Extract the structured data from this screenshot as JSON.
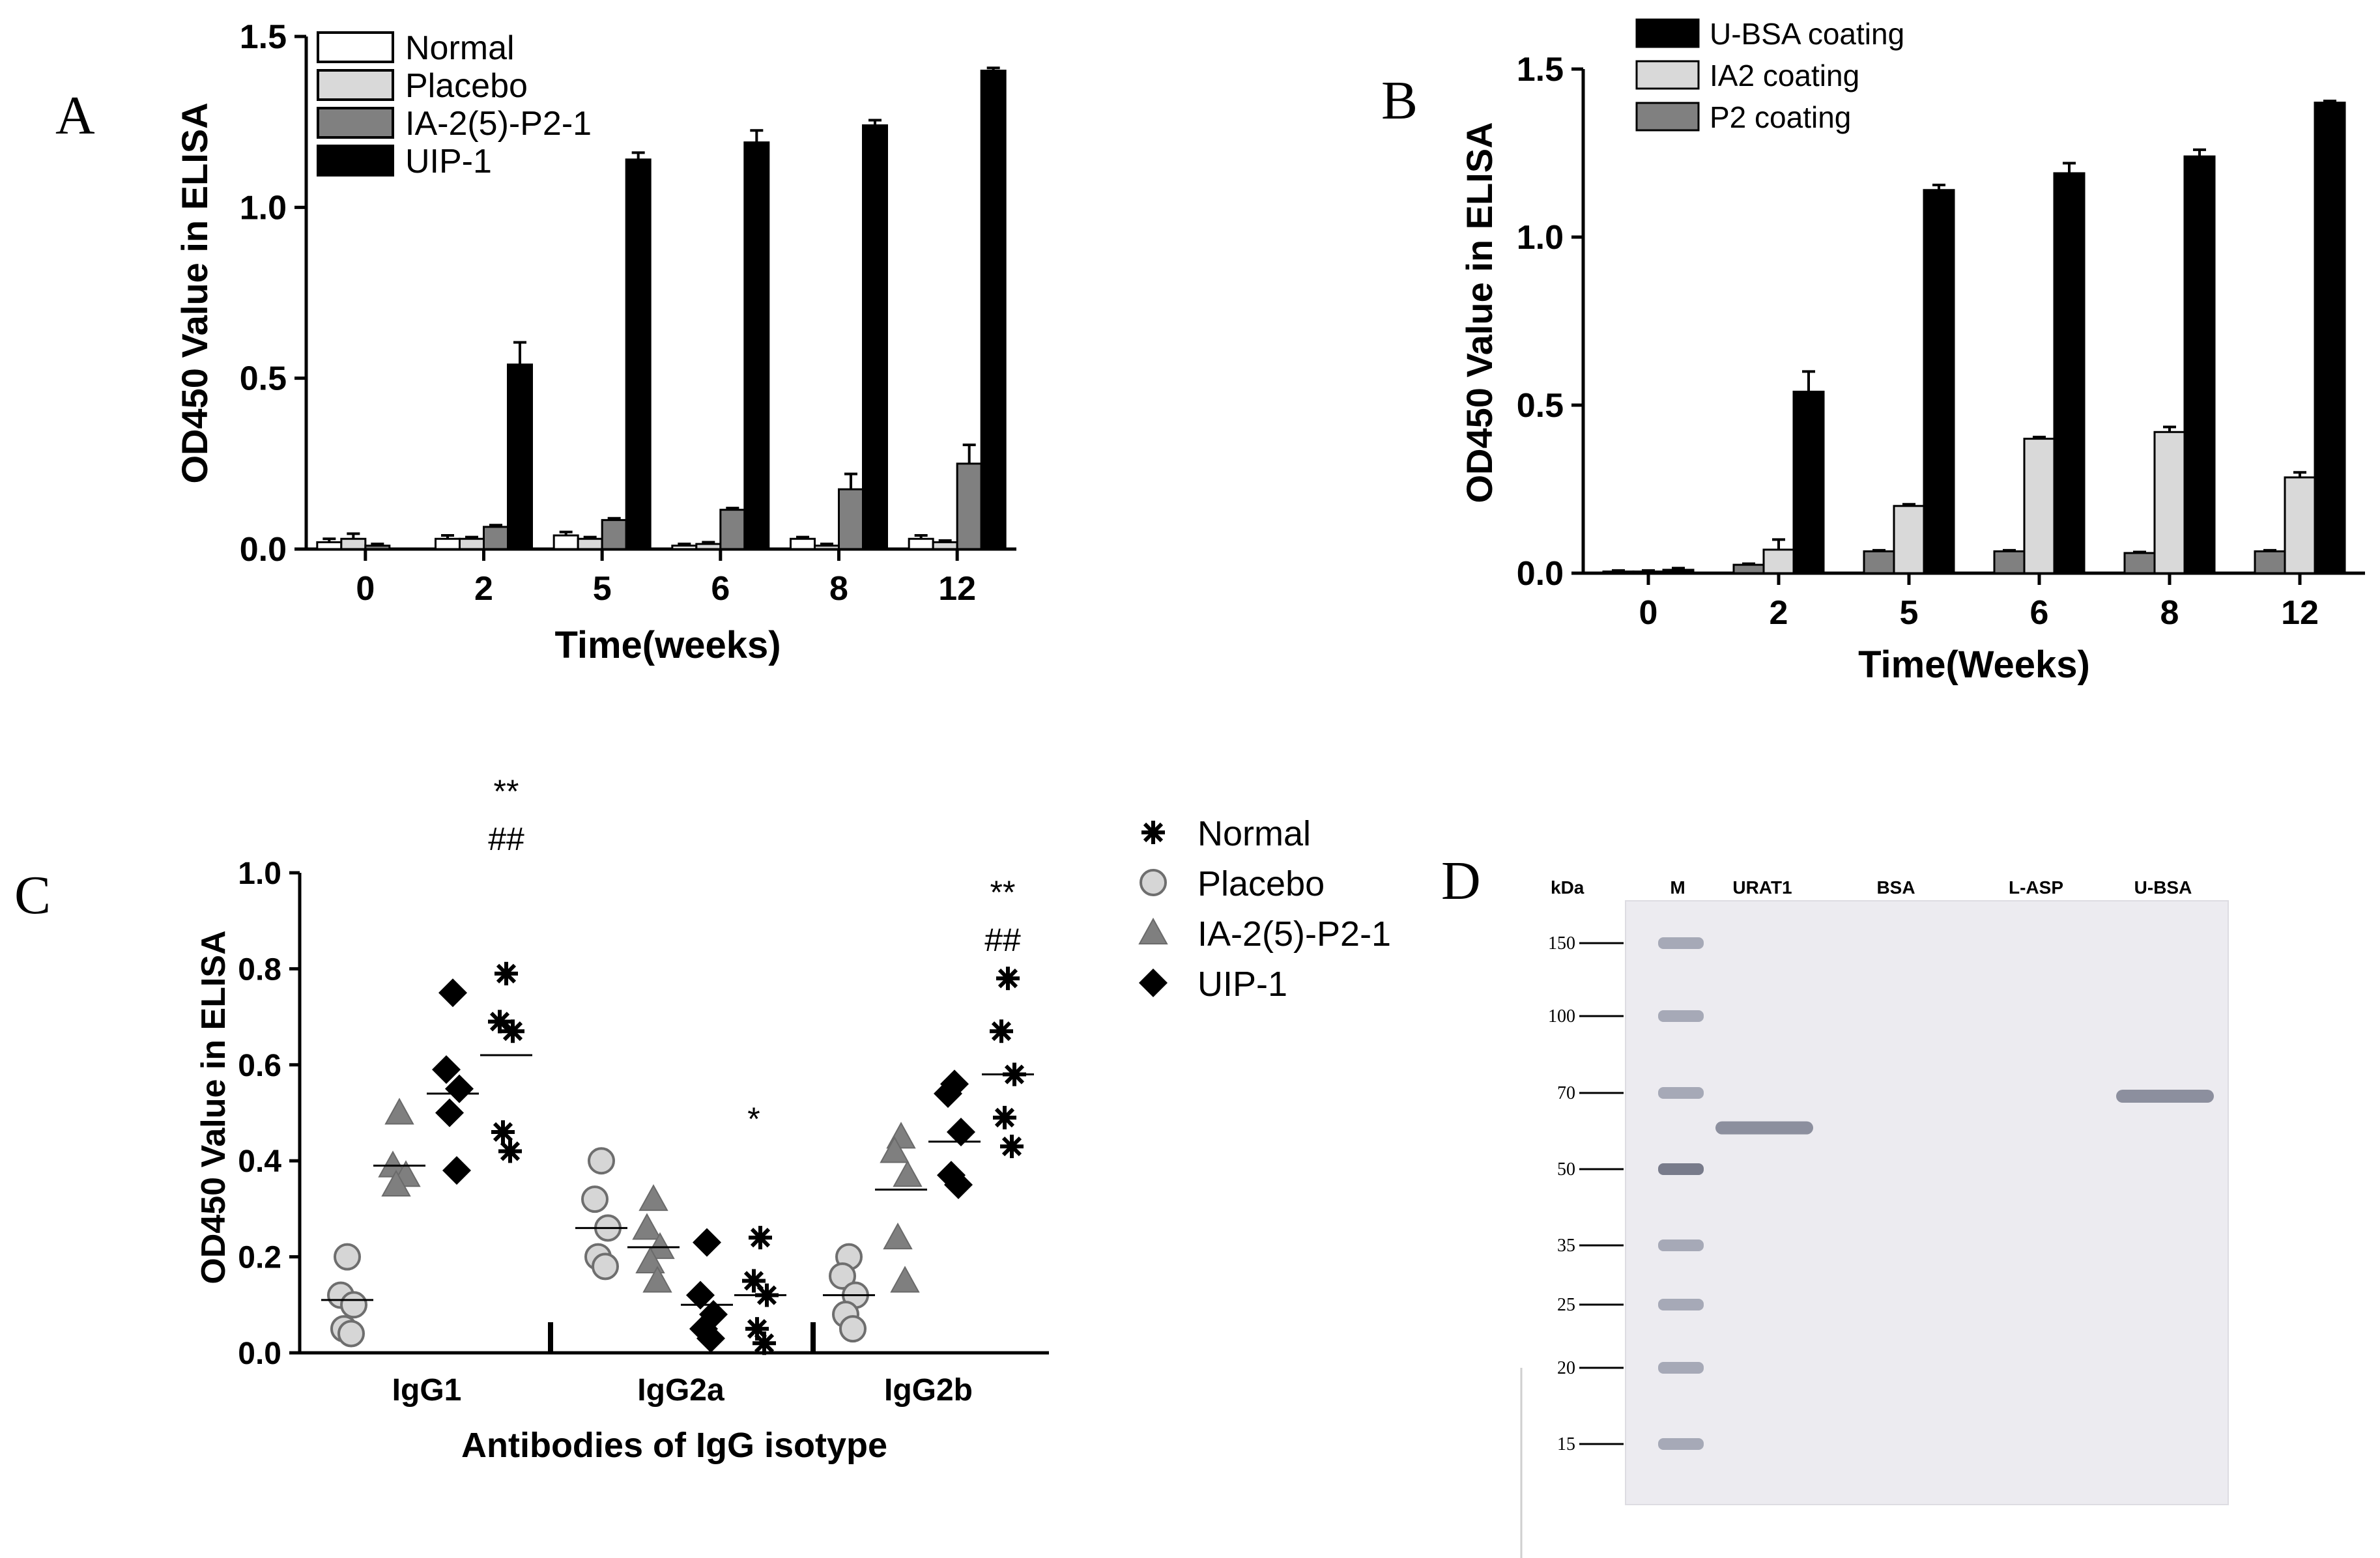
{
  "chart_data": [
    {
      "panel": "A",
      "type": "bar",
      "xlabel": "Time(weeks)",
      "ylabel": "OD450 Value in ELISA",
      "ylim": [
        0,
        1.5
      ],
      "yticks": [
        "0.0",
        "0.5",
        "1.0",
        "1.5"
      ],
      "categories": [
        "0",
        "2",
        "5",
        "6",
        "8",
        "12"
      ],
      "legend_position": "top-left",
      "series": [
        {
          "name": "Normal",
          "color": "#ffffff",
          "values": [
            0.02,
            0.03,
            0.04,
            0.01,
            0.03,
            0.03
          ],
          "errors": [
            0.01,
            0.01,
            0.01,
            0.005,
            0.005,
            0.01
          ]
        },
        {
          "name": "Placebo",
          "color": "#d9d9d9",
          "values": [
            0.03,
            0.03,
            0.03,
            0.015,
            0.01,
            0.02
          ],
          "errors": [
            0.015,
            0.005,
            0.005,
            0.005,
            0.005,
            0.005
          ]
        },
        {
          "name": "IA-2(5)-P2-1",
          "color": "#808080",
          "values": [
            0.01,
            0.065,
            0.085,
            0.115,
            0.175,
            0.25
          ],
          "errors": [
            0.005,
            0.005,
            0.005,
            0.005,
            0.045,
            0.055
          ]
        },
        {
          "name": "UIP-1",
          "color": "#000000",
          "values": [
            0.0,
            0.54,
            1.14,
            1.19,
            1.24,
            1.4
          ],
          "errors": [
            0.0,
            0.065,
            0.02,
            0.035,
            0.015,
            0.008
          ]
        }
      ]
    },
    {
      "panel": "B",
      "type": "bar",
      "xlabel": "Time(Weeks)",
      "ylabel": "OD450 Value in ELISA",
      "ylim": [
        0,
        1.5
      ],
      "yticks": [
        "0.0",
        "0.5",
        "1.0",
        "1.5"
      ],
      "categories": [
        "0",
        "2",
        "5",
        "6",
        "8",
        "12"
      ],
      "legend_position": "top-left",
      "series": [
        {
          "name": "P2 coating",
          "color": "#808080",
          "values": [
            0.005,
            0.025,
            0.065,
            0.065,
            0.06,
            0.065
          ],
          "errors": [
            0.003,
            0.003,
            0.003,
            0.003,
            0.003,
            0.003
          ]
        },
        {
          "name": "IA2 coating",
          "color": "#d9d9d9",
          "values": [
            0.005,
            0.07,
            0.2,
            0.4,
            0.42,
            0.285
          ],
          "errors": [
            0.003,
            0.03,
            0.005,
            0.005,
            0.015,
            0.015
          ]
        },
        {
          "name": "U-BSA coating",
          "color": "#000000",
          "values": [
            0.01,
            0.54,
            1.14,
            1.19,
            1.24,
            1.4
          ],
          "errors": [
            0.005,
            0.06,
            0.015,
            0.03,
            0.02,
            0.005
          ]
        }
      ],
      "legend_order": [
        "U-BSA coating",
        "IA2 coating",
        "P2 coating"
      ]
    },
    {
      "panel": "C",
      "type": "scatter",
      "xlabel": "Antibodies of IgG isotype",
      "ylabel": "OD450 Value in ELISA",
      "ylim": [
        0,
        1.0
      ],
      "yticks": [
        "0.0",
        "0.2",
        "0.4",
        "0.6",
        "0.8",
        "1.0"
      ],
      "categories": [
        "IgG1",
        "IgG2a",
        "IgG2b"
      ],
      "legend_position": "right",
      "series": [
        {
          "name": "Placebo",
          "marker": "circle",
          "values": [
            [
              0.2,
              0.12,
              0.1,
              0.05,
              0.04
            ],
            [
              0.4,
              0.32,
              0.26,
              0.2,
              0.18
            ],
            [
              0.2,
              0.16,
              0.12,
              0.08,
              0.05
            ]
          ],
          "means": [
            0.11,
            0.26,
            0.12
          ]
        },
        {
          "name": "IA-2(5)-P2-1",
          "marker": "triangle",
          "values": [
            [
              0.5,
              0.39,
              0.37,
              0.35
            ],
            [
              0.32,
              0.26,
              0.22,
              0.19,
              0.15
            ],
            [
              0.45,
              0.42,
              0.37,
              0.24,
              0.15
            ]
          ],
          "means": [
            0.39,
            0.22,
            0.34
          ]
        },
        {
          "name": "UIP-1",
          "marker": "diamond",
          "values": [
            [
              0.75,
              0.59,
              0.55,
              0.5,
              0.38
            ],
            [
              0.23,
              0.12,
              0.08,
              0.05,
              0.03
            ],
            [
              0.56,
              0.54,
              0.46,
              0.37,
              0.35
            ]
          ],
          "means": [
            0.54,
            0.1,
            0.44
          ]
        },
        {
          "name": "Normal",
          "marker": "asterisk",
          "values": [
            [
              0.79,
              0.69,
              0.67,
              0.46,
              0.42
            ],
            [
              0.24,
              0.15,
              0.12,
              0.05,
              0.02
            ],
            [
              0.78,
              0.67,
              0.58,
              0.49,
              0.43
            ]
          ],
          "means": [
            0.62,
            0.12,
            0.58
          ]
        }
      ],
      "legend_order": [
        "Normal",
        "Placebo",
        "IA-2(5)-P2-1",
        "UIP-1"
      ],
      "annotations": [
        {
          "text": "**",
          "group": "IgG1"
        },
        {
          "text": "##",
          "group": "IgG1"
        },
        {
          "text": "*",
          "group": "IgG2a"
        },
        {
          "text": "**",
          "group": "IgG2b"
        },
        {
          "text": "##",
          "group": "IgG2b"
        }
      ]
    }
  ],
  "panel_labels": {
    "a": "A",
    "b": "B",
    "c": "C",
    "d": "D"
  },
  "gel": {
    "unit_label": "kDa",
    "lanes": [
      "M",
      "URAT1",
      "BSA",
      "L-ASP",
      "U-BSA"
    ],
    "markers": [
      "150",
      "100",
      "70",
      "50",
      "35",
      "25",
      "20",
      "15"
    ],
    "bands": [
      {
        "lane": "URAT1",
        "kda": 60
      },
      {
        "lane": "U-BSA",
        "kda": 69
      }
    ]
  }
}
